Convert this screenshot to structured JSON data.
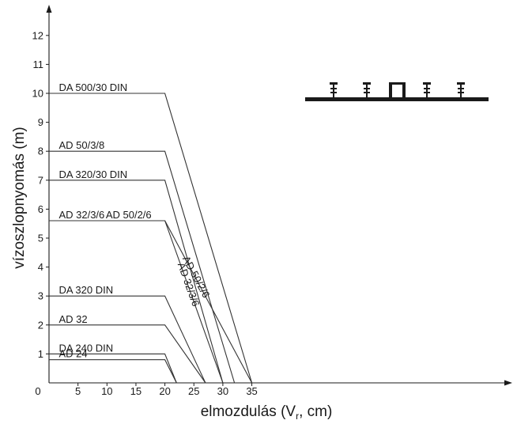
{
  "chart_data": {
    "type": "line",
    "xlabel": "elmozdulás (Vr, cm)",
    "ylabel": "vízoszlopnyomás (m)",
    "xlim": [
      0,
      38
    ],
    "ylim": [
      0,
      12.8
    ],
    "xticks": [
      0,
      5,
      10,
      15,
      20,
      25,
      30,
      35
    ],
    "yticks": [
      1,
      2,
      3,
      4,
      5,
      6,
      7,
      8,
      9,
      10,
      11,
      12
    ],
    "grid": false,
    "legend": "none",
    "series": [
      {
        "name": "DA 500/30 DIN",
        "x": [
          0,
          20,
          35
        ],
        "y": [
          10,
          10,
          0
        ],
        "label_x": 1.7
      },
      {
        "name": "AD 50/3/8",
        "x": [
          0,
          20,
          32
        ],
        "y": [
          8,
          8,
          0
        ],
        "label_x": 1.7
      },
      {
        "name": "DA 320/30 DIN",
        "x": [
          0,
          20,
          30
        ],
        "y": [
          7,
          7,
          0
        ],
        "label_x": 1.7
      },
      {
        "name": "AD 32/3/6",
        "x": [
          0,
          20,
          30
        ],
        "y": [
          5.6,
          5.6,
          0
        ],
        "label_x": 1.7
      },
      {
        "name": "AD 50/2/6",
        "x": [
          20,
          35
        ],
        "y": [
          5.6,
          0
        ],
        "label_x": 9.8
      },
      {
        "name": "DA 320 DIN",
        "x": [
          0,
          20,
          27
        ],
        "y": [
          3,
          3,
          0
        ],
        "label_x": 1.7
      },
      {
        "name": "AD 32",
        "x": [
          0,
          20,
          27
        ],
        "y": [
          2,
          2,
          0
        ],
        "label_x": 1.7
      },
      {
        "name": "DA 240 DIN",
        "x": [
          0,
          20,
          22
        ],
        "y": [
          1,
          1,
          0
        ],
        "label_x": 1.7
      },
      {
        "name": "AD 24",
        "x": [
          0,
          20,
          22
        ],
        "y": [
          0.8,
          0.8,
          0
        ],
        "label_x": 1.7
      }
    ],
    "slanted_labels": [
      {
        "text": "AD 50/2/6",
        "x": 23.0,
        "y": 4.3
      },
      {
        "text": "AD 32/3/6",
        "x": 22.2,
        "y": 4.1
      }
    ]
  }
}
